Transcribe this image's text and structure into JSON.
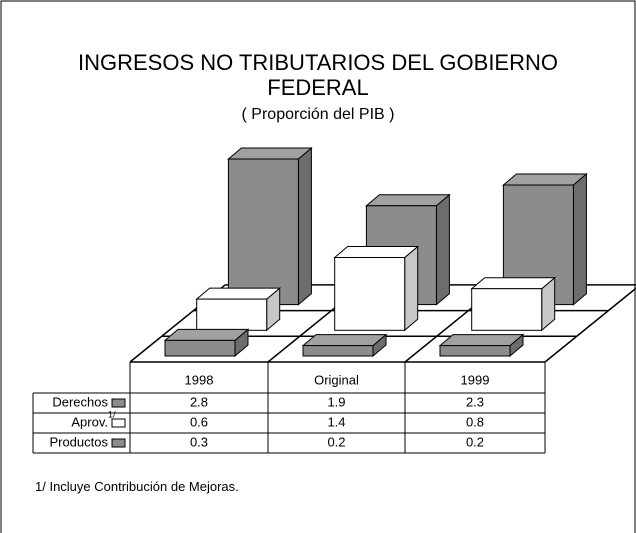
{
  "chart_data": {
    "type": "bar3d",
    "title": "INGRESOS NO TRIBUTARIOS DEL GOBIERNO FEDERAL",
    "subtitle": "( Proporción del PIB )",
    "categories": [
      "1998",
      "Original",
      "1999"
    ],
    "series": [
      {
        "name": "Derechos",
        "color": "#8c8c8c",
        "values": [
          2.8,
          1.9,
          2.3
        ]
      },
      {
        "name": "Aprov.",
        "color": "#ffffff",
        "values": [
          0.6,
          1.4,
          0.8
        ],
        "footnote_marker": "1/"
      },
      {
        "name": "Productos",
        "color": "#8c8c8c",
        "values": [
          0.3,
          0.2,
          0.2
        ]
      }
    ],
    "footnote": "1/ Incluye Contribución de Mejoras."
  }
}
